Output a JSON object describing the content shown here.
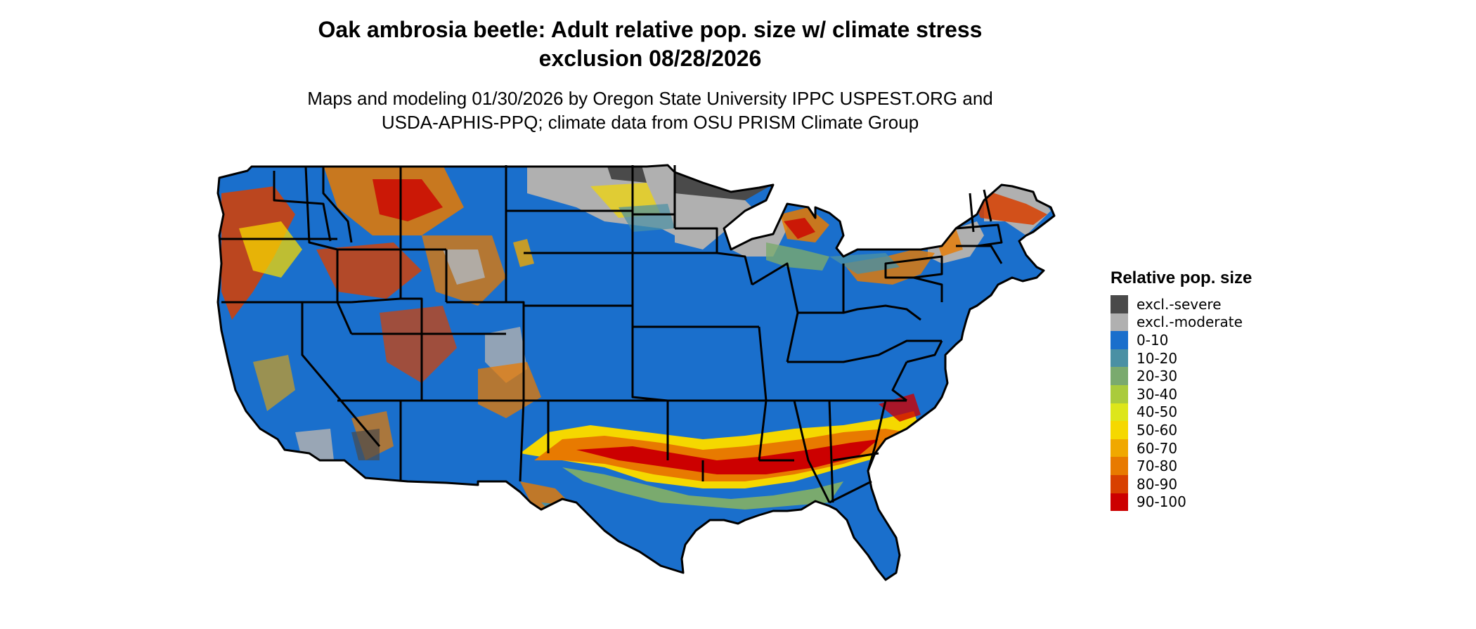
{
  "title_line1": "Oak ambrosia beetle: Adult relative pop. size w/ climate stress",
  "title_line2": "exclusion 08/28/2026",
  "subtitle_line1": "Maps and modeling 01/30/2026 by Oregon State University IPPC USPEST.ORG and",
  "subtitle_line2": "USDA-APHIS-PPQ; climate data from OSU PRISM Climate Group",
  "legend": {
    "title": "Relative pop. size",
    "items": [
      {
        "label": "excl.-severe",
        "color": "#4a4a4a"
      },
      {
        "label": "excl.-moderate",
        "color": "#b0b0b0"
      },
      {
        "label": "0-10",
        "color": "#1a6fcc"
      },
      {
        "label": "10-20",
        "color": "#4a90a4"
      },
      {
        "label": "20-30",
        "color": "#7aaa6e"
      },
      {
        "label": "30-40",
        "color": "#aacb3c"
      },
      {
        "label": "40-50",
        "color": "#dde61a"
      },
      {
        "label": "50-60",
        "color": "#f5d800"
      },
      {
        "label": "60-70",
        "color": "#f0a800"
      },
      {
        "label": "70-80",
        "color": "#e87a00"
      },
      {
        "label": "80-90",
        "color": "#d84000"
      },
      {
        "label": "90-100",
        "color": "#cc0000"
      }
    ]
  },
  "map": {
    "region": "contiguous-united-states",
    "boundaries": "state-lines",
    "boundary_color": "#000000"
  }
}
